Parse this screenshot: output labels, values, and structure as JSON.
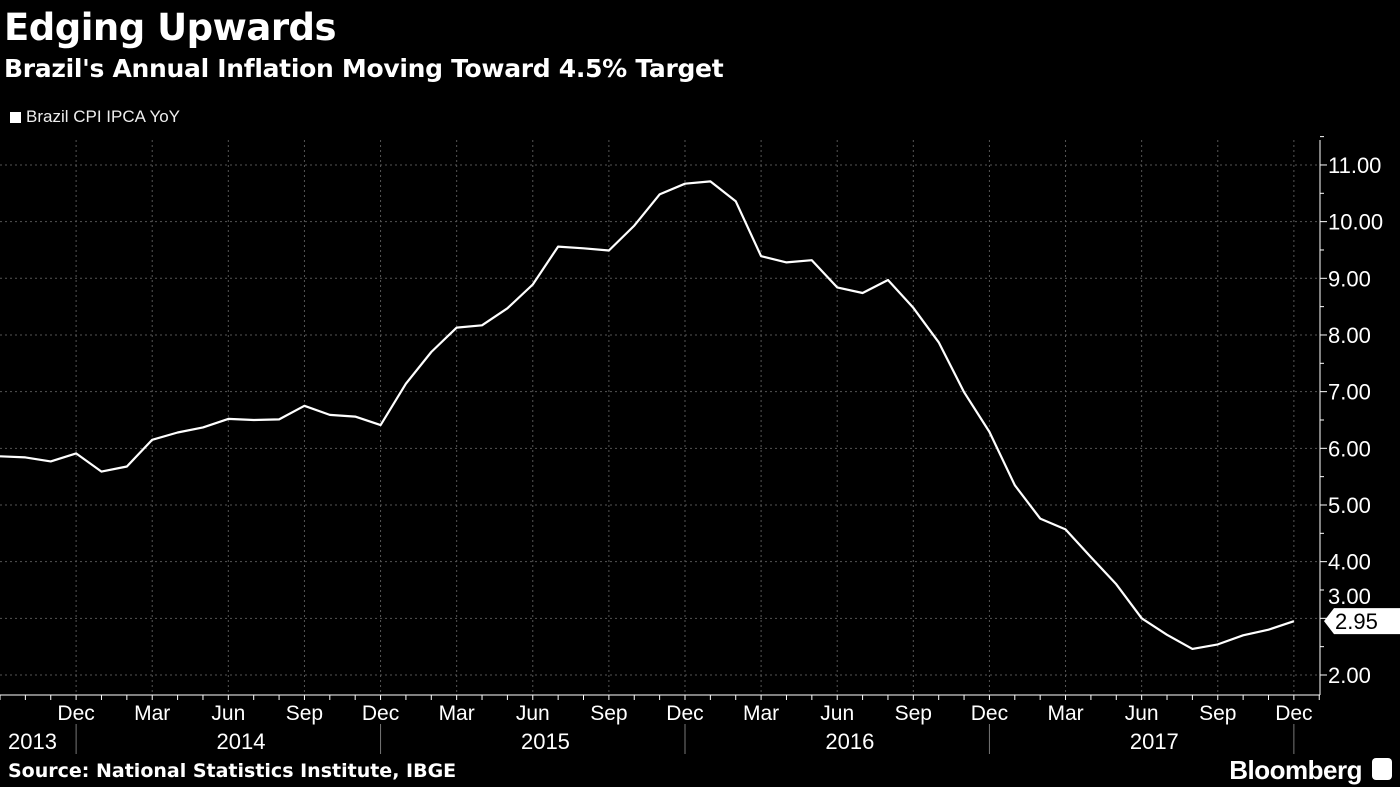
{
  "title": "Edging Upwards",
  "subtitle": "Brazil's Annual Inflation Moving Toward 4.5% Target",
  "source": "Source: National Statistics Institute, IBGE",
  "brand": "Bloomberg",
  "chart_data": {
    "type": "line",
    "title": "Edging Upwards",
    "subtitle": "Brazil's Annual Inflation Moving Toward 4.5% Target",
    "legend": [
      "Brazil CPI IPCA YoY"
    ],
    "legend_placement": "top-left",
    "grid": true,
    "y_axis_side": "right",
    "ylim": [
      1.7,
      11.5
    ],
    "yticks": [
      "2.00",
      "3.00",
      "4.00",
      "5.00",
      "6.00",
      "7.00",
      "8.00",
      "9.00",
      "10.00",
      "11.00"
    ],
    "x_month_labels": [
      "Dec",
      "Mar",
      "Jun",
      "Sep",
      "Dec",
      "Mar",
      "Jun",
      "Sep",
      "Dec",
      "Mar",
      "Jun",
      "Sep",
      "Dec",
      "Mar",
      "Jun",
      "Sep",
      "Dec"
    ],
    "x_year_labels": [
      "2013",
      "2014",
      "2015",
      "2016",
      "2017"
    ],
    "last_value_label": "2.95",
    "colors": {
      "background": "#000000",
      "line": "#ffffff",
      "grid": "#555555"
    },
    "series": [
      {
        "name": "Brazil CPI IPCA YoY",
        "x": [
          "2013-09",
          "2013-10",
          "2013-11",
          "2013-12",
          "2014-01",
          "2014-02",
          "2014-03",
          "2014-04",
          "2014-05",
          "2014-06",
          "2014-07",
          "2014-08",
          "2014-09",
          "2014-10",
          "2014-11",
          "2014-12",
          "2015-01",
          "2015-02",
          "2015-03",
          "2015-04",
          "2015-05",
          "2015-06",
          "2015-07",
          "2015-08",
          "2015-09",
          "2015-10",
          "2015-11",
          "2015-12",
          "2016-01",
          "2016-02",
          "2016-03",
          "2016-04",
          "2016-05",
          "2016-06",
          "2016-07",
          "2016-08",
          "2016-09",
          "2016-10",
          "2016-11",
          "2016-12",
          "2017-01",
          "2017-02",
          "2017-03",
          "2017-04",
          "2017-05",
          "2017-06",
          "2017-07",
          "2017-08",
          "2017-09",
          "2017-10",
          "2017-11",
          "2017-12"
        ],
        "values": [
          5.86,
          5.84,
          5.77,
          5.91,
          5.59,
          5.68,
          6.15,
          6.28,
          6.37,
          6.52,
          6.5,
          6.51,
          6.75,
          6.59,
          6.56,
          6.41,
          7.14,
          7.7,
          8.13,
          8.17,
          8.47,
          8.89,
          9.56,
          9.53,
          9.49,
          9.93,
          10.48,
          10.67,
          10.71,
          10.36,
          9.39,
          9.28,
          9.32,
          8.84,
          8.74,
          8.97,
          8.48,
          7.87,
          6.99,
          6.29,
          5.35,
          4.76,
          4.57,
          4.08,
          3.6,
          3.0,
          2.71,
          2.46,
          2.54,
          2.7,
          2.8,
          2.95
        ]
      }
    ]
  }
}
